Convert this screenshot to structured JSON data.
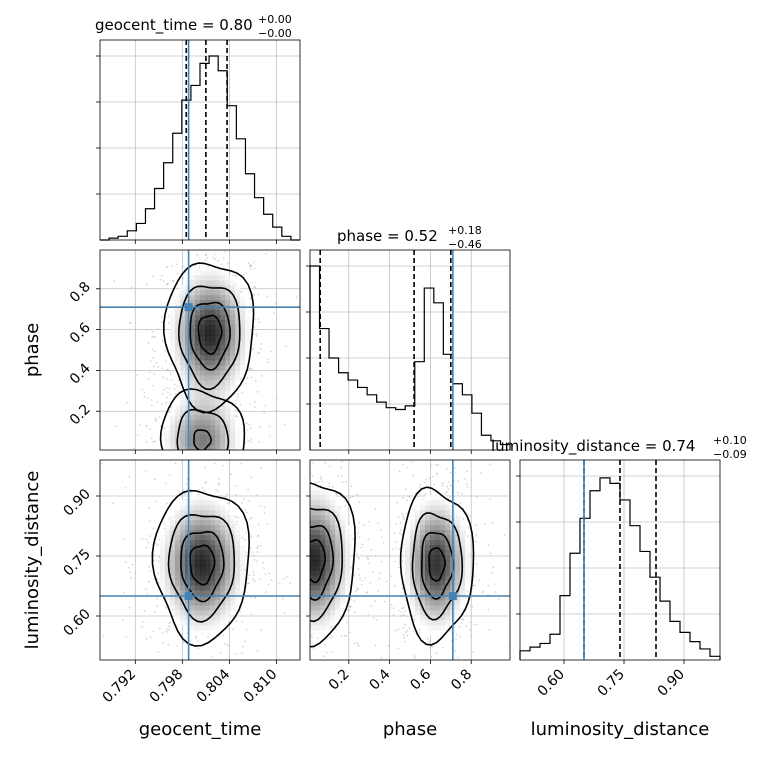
{
  "chart_data": {
    "type": "corner",
    "parameters": [
      "geocent_time",
      "phase",
      "luminosity_distance"
    ],
    "colors": {
      "truth": "#4682b4",
      "hist": "#000000",
      "grid": "#c0c0c0",
      "scatter": "#bbbbbb",
      "contour_fill": "#1a1a1a"
    },
    "truths": {
      "geocent_time": 0.7988,
      "phase": 0.71,
      "luminosity_distance": 0.65
    },
    "panels": [
      {
        "kind": "hist1d",
        "param": "geocent_time",
        "title_name": "geocent_time",
        "title_value": "0.80",
        "title_plus": "+0.00",
        "title_minus": "−0.00",
        "quantiles": [
          0.7985,
          0.801,
          0.8037
        ],
        "xlim": [
          0.7875,
          0.813
        ],
        "bin_heights": [
          0.0,
          0.01,
          0.02,
          0.05,
          0.09,
          0.17,
          0.28,
          0.42,
          0.58,
          0.76,
          0.84,
          0.96,
          1.0,
          0.92,
          0.73,
          0.55,
          0.36,
          0.23,
          0.14,
          0.07,
          0.02,
          0.0
        ]
      },
      {
        "kind": "hist1d",
        "param": "phase",
        "title_name": "phase",
        "title_value": "0.52",
        "title_plus": "+0.18",
        "title_minus": "−0.46",
        "quantiles": [
          0.06,
          0.52,
          0.7
        ],
        "xlim": [
          0.01,
          0.99
        ],
        "bin_heights": [
          1.0,
          0.66,
          0.5,
          0.42,
          0.38,
          0.34,
          0.3,
          0.26,
          0.23,
          0.22,
          0.24,
          0.48,
          0.88,
          0.8,
          0.52,
          0.36,
          0.3,
          0.2,
          0.08,
          0.05,
          0.03
        ]
      },
      {
        "kind": "hist1d",
        "param": "luminosity_distance",
        "title_name": "luminosity_distance",
        "title_value": "0.74",
        "title_plus": "+0.10",
        "title_minus": "−0.09",
        "quantiles": [
          0.65,
          0.74,
          0.83
        ],
        "xlim": [
          0.49,
          0.99
        ],
        "bin_heights": [
          0.05,
          0.07,
          0.09,
          0.14,
          0.35,
          0.58,
          0.77,
          0.92,
          0.99,
          0.96,
          0.87,
          0.73,
          0.59,
          0.45,
          0.32,
          0.21,
          0.15,
          0.1,
          0.06,
          0.02
        ]
      },
      {
        "kind": "hist2d",
        "x": "geocent_time",
        "y": "phase",
        "xlim": [
          0.7875,
          0.813
        ],
        "ylim": [
          0.01,
          0.99
        ],
        "modes": [
          {
            "cx": 0.8015,
            "cy": 0.58,
            "sx": 0.0025,
            "sy": 0.16,
            "w": 1.0
          },
          {
            "cx": 0.8005,
            "cy": 0.06,
            "sx": 0.0026,
            "sy": 0.12,
            "w": 0.65
          }
        ]
      },
      {
        "kind": "hist2d",
        "x": "geocent_time",
        "y": "luminosity_distance",
        "xlim": [
          0.7875,
          0.813
        ],
        "ylim": [
          0.49,
          0.99
        ],
        "modes": [
          {
            "cx": 0.8005,
            "cy": 0.73,
            "sx": 0.0027,
            "sy": 0.085,
            "w": 1.0
          }
        ]
      },
      {
        "kind": "hist2d",
        "x": "phase",
        "y": "luminosity_distance",
        "xlim": [
          0.01,
          0.99
        ],
        "ylim": [
          0.49,
          0.99
        ],
        "modes": [
          {
            "cx": 0.03,
            "cy": 0.74,
            "sx": 0.09,
            "sy": 0.09,
            "w": 1.0
          },
          {
            "cx": 0.63,
            "cy": 0.73,
            "sx": 0.08,
            "sy": 0.085,
            "w": 0.95
          }
        ]
      }
    ],
    "axes": {
      "geocent_time": {
        "label": "geocent_time",
        "ticks": [
          0.792,
          0.798,
          0.804,
          0.81
        ],
        "tick_labels": [
          "0.792",
          "0.798",
          "0.804",
          "0.810"
        ]
      },
      "phase": {
        "label": "phase",
        "ticks": [
          0.2,
          0.4,
          0.6,
          0.8
        ],
        "tick_labels": [
          "0.2",
          "0.4",
          "0.6",
          "0.8"
        ]
      },
      "luminosity_distance": {
        "label": "luminosity_distance",
        "ticks": [
          0.6,
          0.75,
          0.9
        ],
        "tick_labels": [
          "0.60",
          "0.75",
          "0.90"
        ]
      }
    },
    "grid": true
  }
}
